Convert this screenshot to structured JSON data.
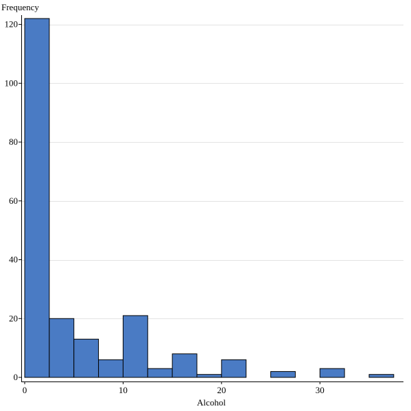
{
  "chart_data": {
    "type": "bar",
    "subtype": "histogram",
    "xlabel": "Alcohol",
    "ylabel": "Frequency",
    "xlim": [
      0,
      38
    ],
    "ylim": [
      0,
      122
    ],
    "xticks": [
      0,
      10,
      20,
      30
    ],
    "yticks": [
      0,
      20,
      40,
      60,
      80,
      100,
      120
    ],
    "bin_width": 2.5,
    "bins": [
      {
        "x0": 0.0,
        "x1": 2.5,
        "count": 122
      },
      {
        "x0": 2.5,
        "x1": 5.0,
        "count": 20
      },
      {
        "x0": 5.0,
        "x1": 7.5,
        "count": 13
      },
      {
        "x0": 7.5,
        "x1": 10.0,
        "count": 6
      },
      {
        "x0": 10.0,
        "x1": 12.5,
        "count": 21
      },
      {
        "x0": 12.5,
        "x1": 15.0,
        "count": 3
      },
      {
        "x0": 15.0,
        "x1": 17.5,
        "count": 8
      },
      {
        "x0": 17.5,
        "x1": 20.0,
        "count": 1
      },
      {
        "x0": 20.0,
        "x1": 22.5,
        "count": 6
      },
      {
        "x0": 22.5,
        "x1": 25.0,
        "count": 0
      },
      {
        "x0": 25.0,
        "x1": 27.5,
        "count": 2
      },
      {
        "x0": 27.5,
        "x1": 30.0,
        "count": 0
      },
      {
        "x0": 30.0,
        "x1": 32.5,
        "count": 3
      },
      {
        "x0": 32.5,
        "x1": 35.0,
        "count": 0
      },
      {
        "x0": 35.0,
        "x1": 37.5,
        "count": 1
      }
    ],
    "bar_color": "#4a7bc4",
    "grid": true
  }
}
